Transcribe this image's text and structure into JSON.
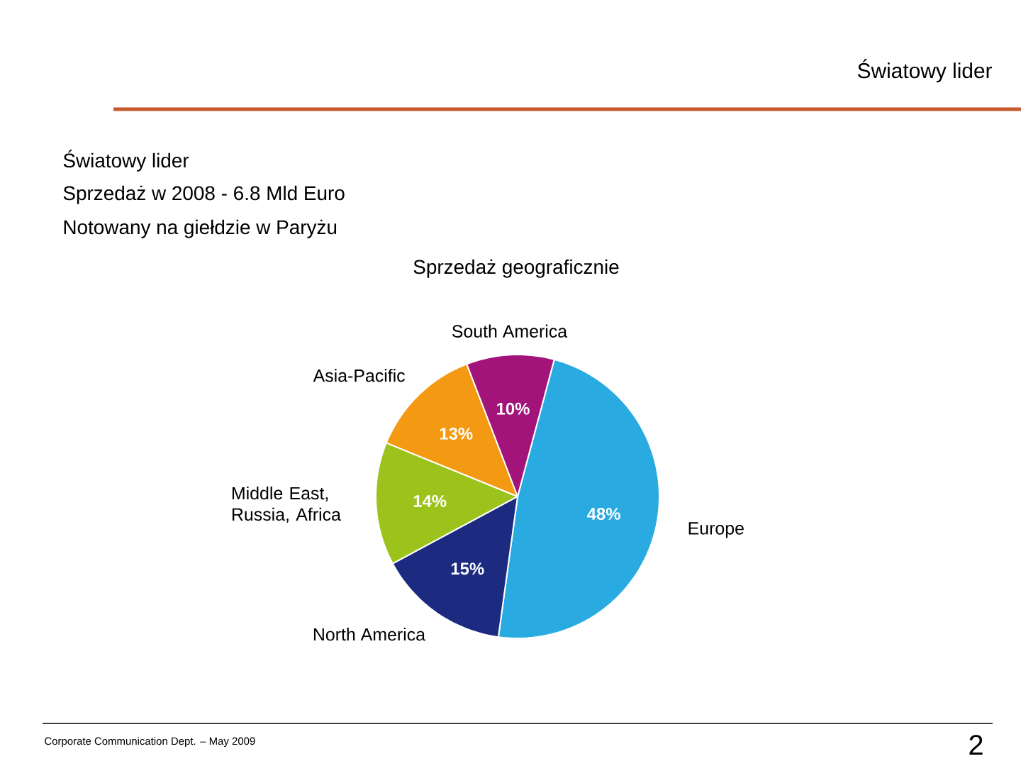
{
  "chart_data": {
    "type": "pie",
    "title": "Sprzedaż geograficznie",
    "categories": [
      "Europe",
      "North America",
      "Middle East, Russia, Africa",
      "Asia-Pacific",
      "South America"
    ],
    "values": [
      48,
      15,
      14,
      13,
      10
    ],
    "colors": [
      "#29abe2",
      "#1c2a80",
      "#9cc31b",
      "#f39a12",
      "#a3147b"
    ],
    "value_labels": [
      "48%",
      "15%",
      "14%",
      "13%",
      "10%"
    ],
    "annotations": [
      "Światowy lider",
      "Światowy lider",
      "Sprzedaż w 2008 - 6.8 Mld Euro",
      "Notowany na giełdzie w Paryżu",
      "Corporate Communication Dept. – May 2009",
      "2"
    ]
  }
}
